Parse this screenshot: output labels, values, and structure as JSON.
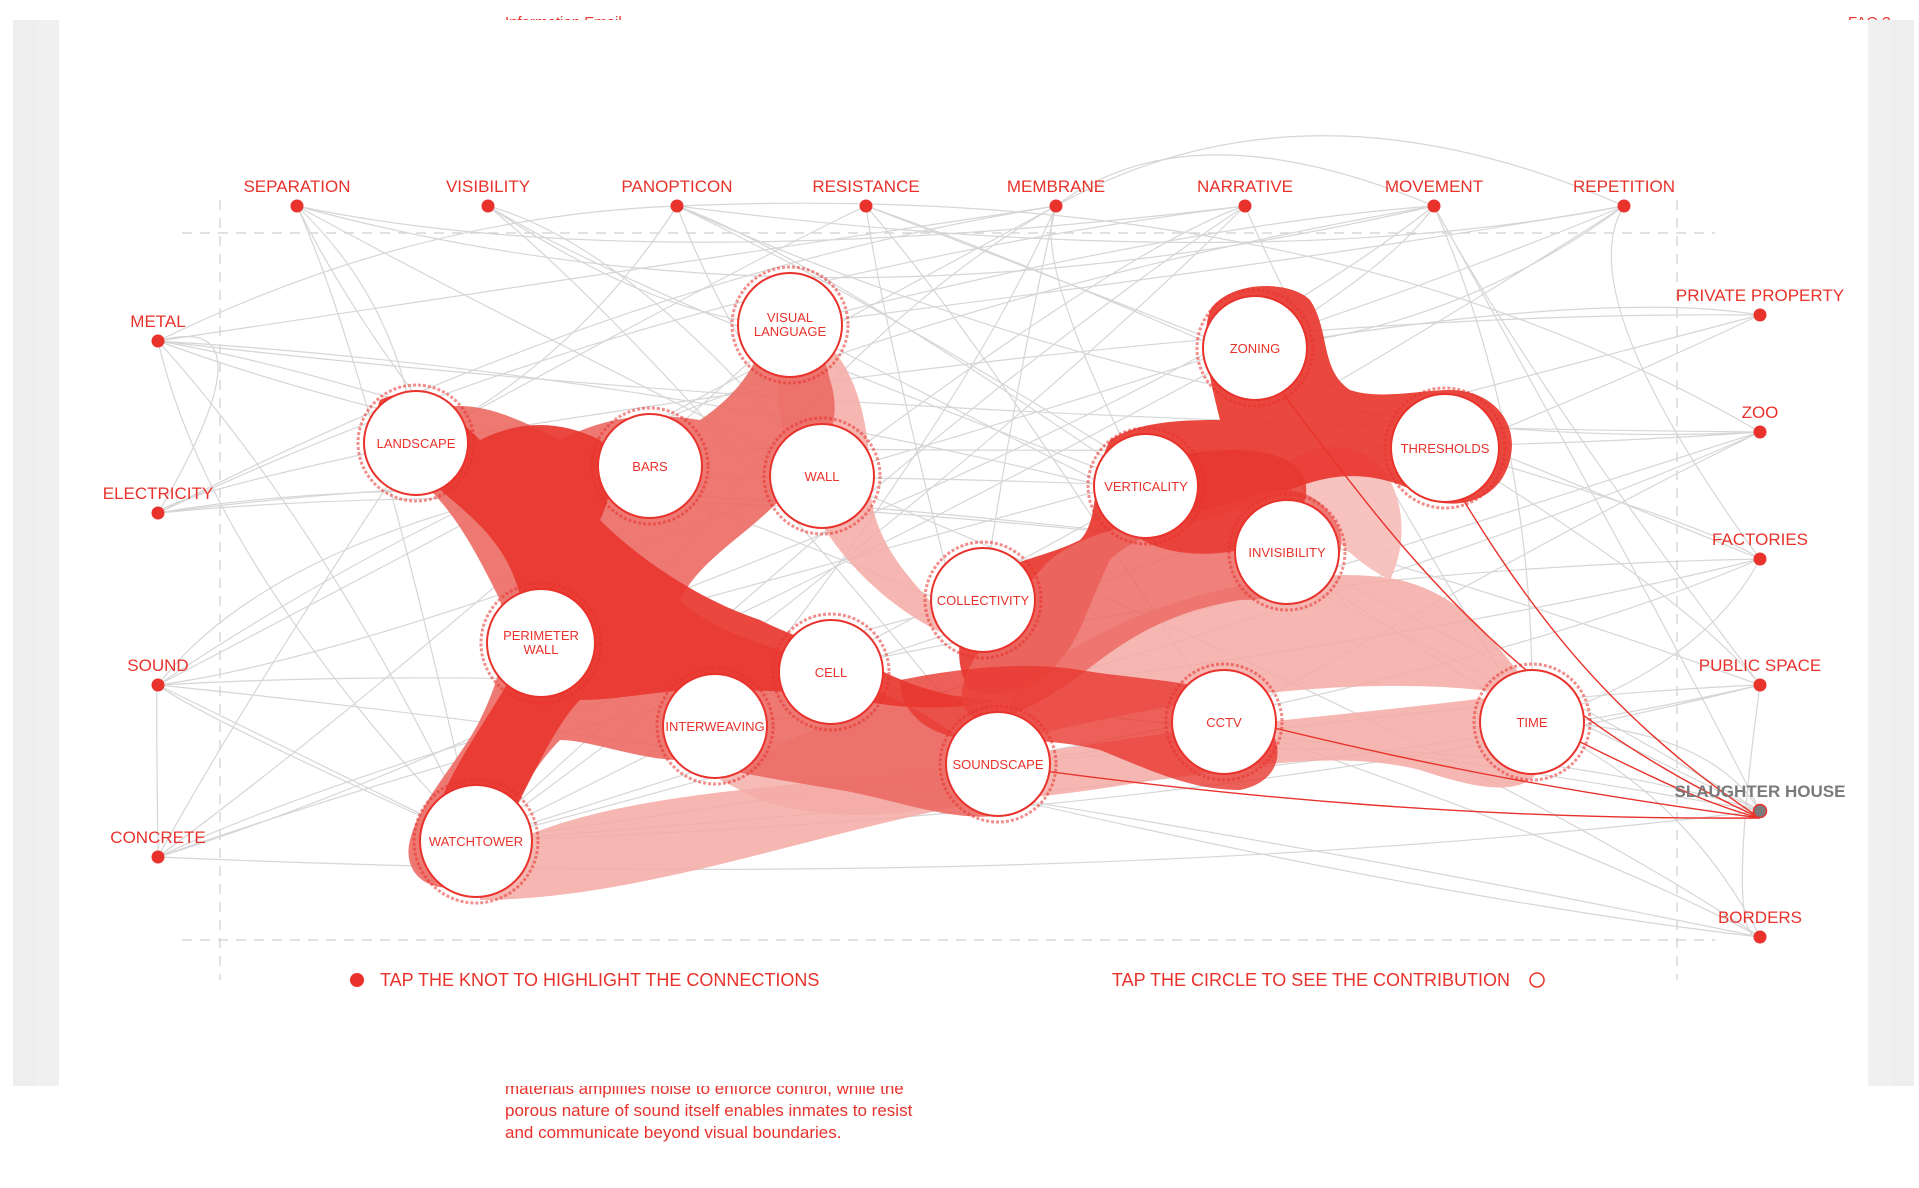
{
  "background_page": {
    "header_links": "Information  Email",
    "header_right": "FAQ ?",
    "body_text_lines": [
      "materials amplifies noise to enforce control, while the",
      "porous nature of sound itself enables inmates to resist",
      "and communicate beyond visual boundaries."
    ]
  },
  "colors": {
    "accent": "#e8322b",
    "accent_light": "#f4a9a4",
    "line": "#d8d8d8",
    "frame": "#cccccc",
    "selected": "#7a7a7a"
  },
  "top_terms": [
    "SEPARATION",
    "VISIBILITY",
    "PANOPTICON",
    "RESISTANCE",
    "MEMBRANE",
    "NARRATIVE",
    "MOVEMENT",
    "REPETITION"
  ],
  "left_terms": [
    "METAL",
    "ELECTRICITY",
    "SOUND",
    "CONCRETE"
  ],
  "right_terms": [
    "PRIVATE PROPERTY",
    "ZOO",
    "FACTORIES",
    "PUBLIC SPACE",
    "SLAUGHTER HOUSE",
    "BORDERS"
  ],
  "selected_term": "SLAUGHTER HOUSE",
  "knots": [
    "VISUAL LANGUAGE",
    "LANDSCAPE",
    "BARS",
    "WALL",
    "PERIMETER WALL",
    "CELL",
    "INTERWEAVING",
    "WATCHTOWER",
    "SOUNDSCAPE",
    "COLLECTIVITY",
    "VERTICALITY",
    "ZONING",
    "THRESHOLDS",
    "INVISIBILITY",
    "CCTV",
    "TIME"
  ],
  "hints": {
    "knot": "TAP THE KNOT TO HIGHLIGHT THE CONNECTIONS",
    "circle": "TAP THE CIRCLE TO SEE THE CONTRIBUTION"
  }
}
